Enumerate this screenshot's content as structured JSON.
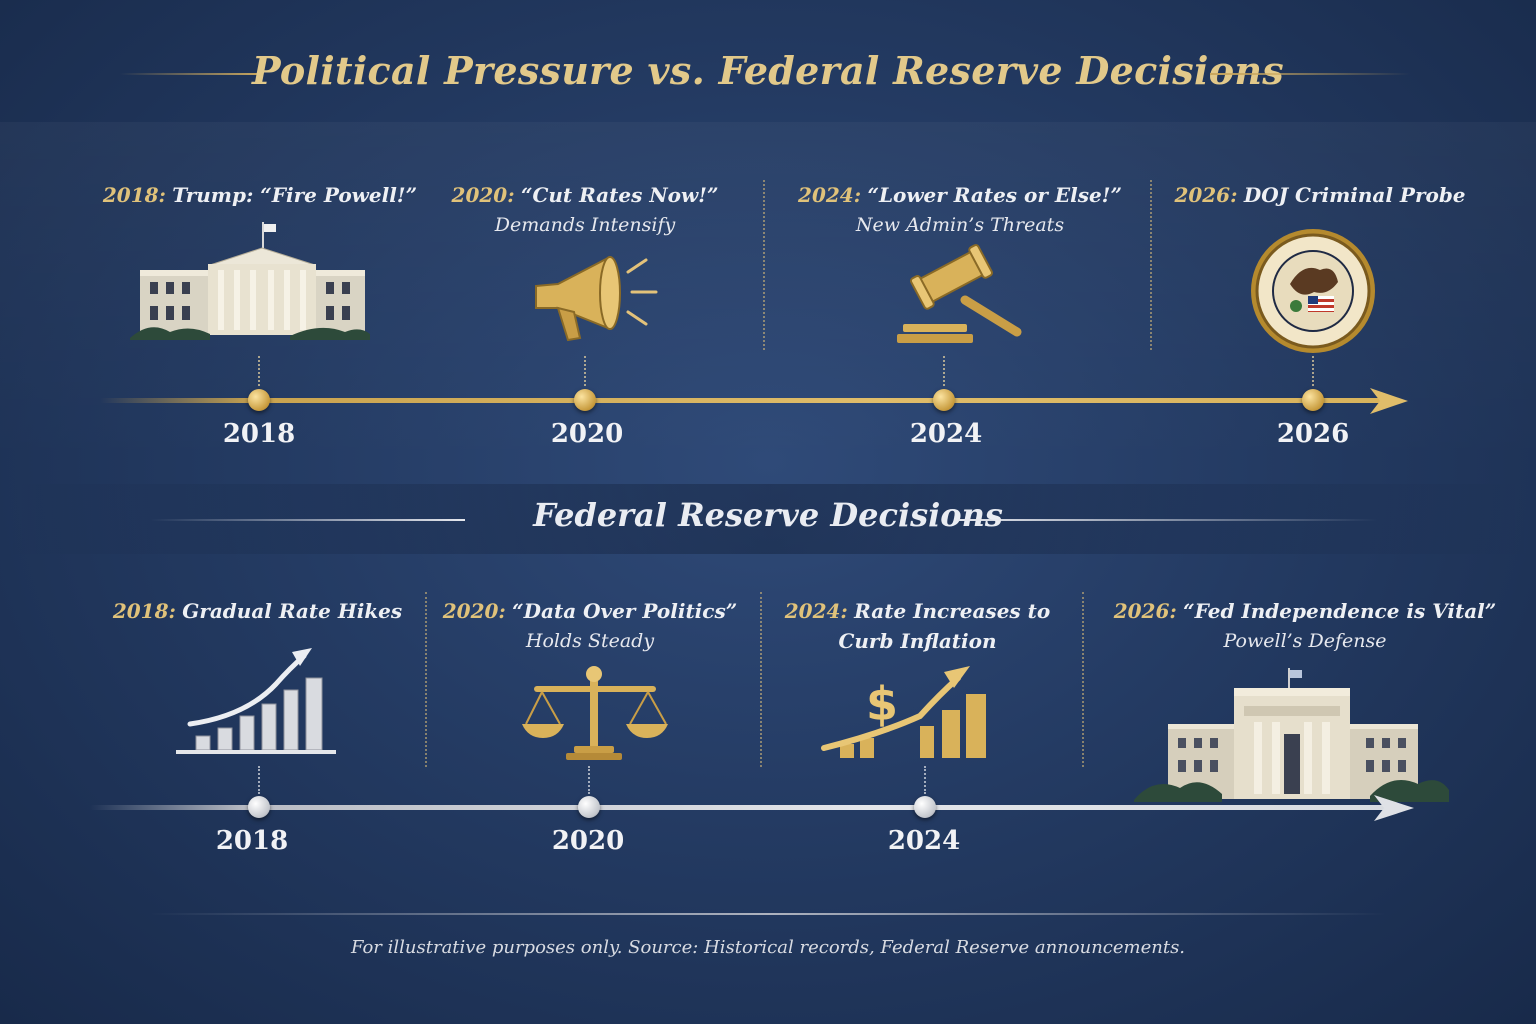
{
  "title": "Political Pressure vs. Federal Reserve Decisions",
  "pressure": {
    "events": [
      {
        "year_label": "2018:",
        "headline": "Trump: “Fire Powell!”",
        "subline": "",
        "icon": "white-house-icon"
      },
      {
        "year_label": "2020:",
        "headline": "“Cut Rates Now!”",
        "subline": "Demands Intensify",
        "icon": "megaphone-icon"
      },
      {
        "year_label": "2024:",
        "headline": "“Lower Rates or Else!”",
        "subline": "New Admin’s Threats",
        "icon": "gavel-icon"
      },
      {
        "year_label": "2026:",
        "headline": "DOJ Criminal Probe",
        "subline": "",
        "icon": "doj-seal-icon"
      }
    ],
    "axis_years": [
      "2018",
      "2020",
      "2024",
      "2026"
    ]
  },
  "fed": {
    "section_title": "Federal Reserve Decisions",
    "events": [
      {
        "year_label": "2018:",
        "headline": "Gradual Rate Hikes",
        "subline": "",
        "icon": "rising-bar-chart-icon"
      },
      {
        "year_label": "2020:",
        "headline": "“Data Over Politics”",
        "subline": "Holds Steady",
        "icon": "scales-of-justice-icon"
      },
      {
        "year_label": "2024:",
        "headline": "Rate Increases to",
        "subline": "Curb Inflation",
        "icon": "dollar-growth-chart-icon"
      },
      {
        "year_label": "2026:",
        "headline": "“Fed Independence is Vital”",
        "subline": "Powell’s Defense",
        "icon": "federal-reserve-building-icon"
      }
    ],
    "axis_years": [
      "2018",
      "2020",
      "2024"
    ]
  },
  "footer": "For illustrative purposes only. Source: Historical records, Federal Reserve announcements.",
  "colors": {
    "gold": "#e0c27a",
    "navy": "#243b63",
    "silver": "#e4e6ea"
  }
}
